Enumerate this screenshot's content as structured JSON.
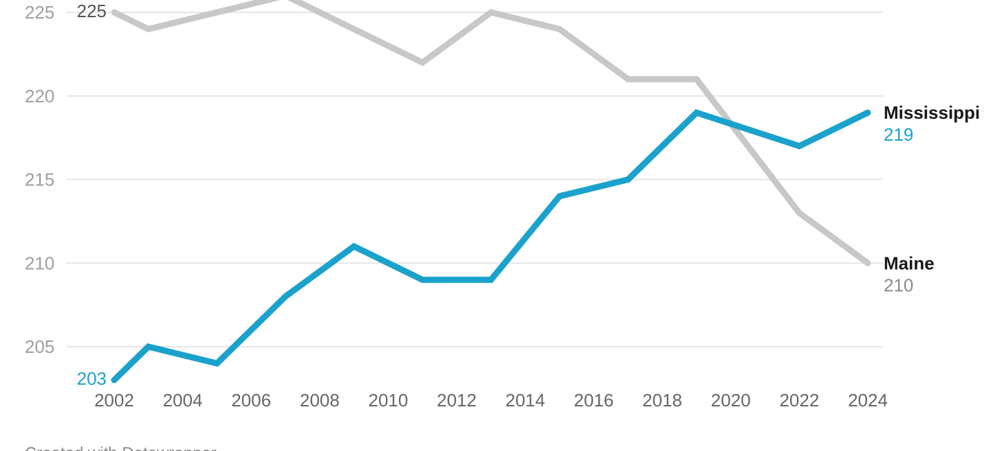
{
  "chart_data": {
    "type": "line",
    "x": [
      2002,
      2003,
      2005,
      2007,
      2009,
      2011,
      2013,
      2015,
      2017,
      2019,
      2022,
      2024
    ],
    "series": [
      {
        "name": "Maine",
        "color": "#c8c8c8",
        "values": [
          225,
          224,
          225,
          226,
          224,
          222,
          225,
          224,
          221,
          221,
          213,
          210
        ],
        "start_label": "225",
        "end_label": "210"
      },
      {
        "name": "Mississippi",
        "color": "#1ba2cc",
        "values": [
          203,
          205,
          204,
          208,
          211,
          209,
          209,
          214,
          215,
          219,
          217,
          219
        ],
        "start_label": "203",
        "end_label": "219"
      }
    ],
    "yticks": [
      "205",
      "210",
      "215",
      "220",
      "225"
    ],
    "xticks": [
      "2002",
      "2004",
      "2006",
      "2008",
      "2010",
      "2012",
      "2014",
      "2016",
      "2018",
      "2020",
      "2022",
      "2024"
    ],
    "ylim": [
      203,
      225
    ],
    "xlim": [
      2002,
      2024
    ],
    "grid": true,
    "xlabel": "",
    "ylabel": ""
  },
  "footer": {
    "credit": "Created with Datawrapper"
  }
}
